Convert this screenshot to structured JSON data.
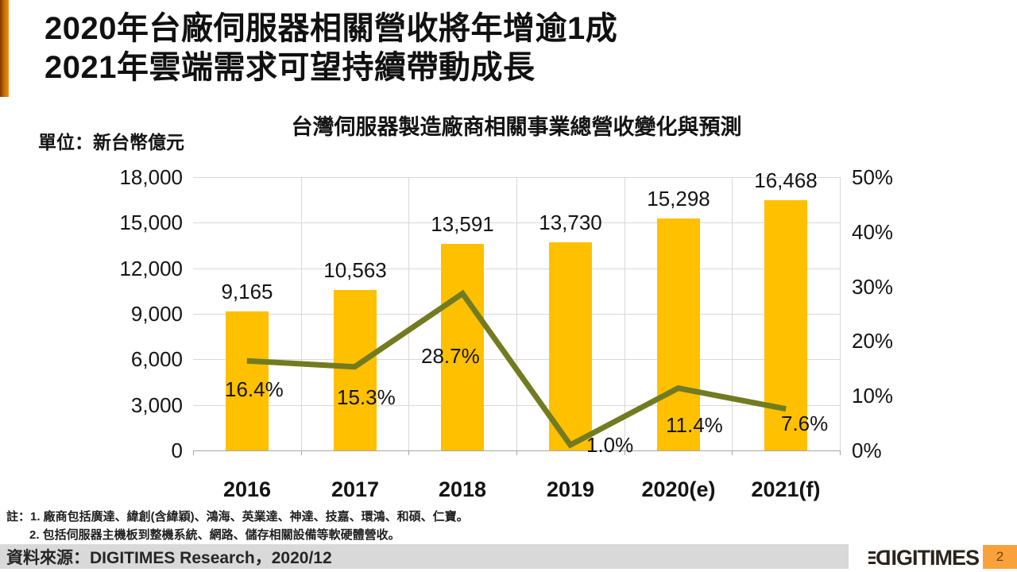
{
  "title": {
    "line1": "2020年台廠伺服器相關營收將年增逾1成",
    "line2": "2021年雲端需求可望持續帶動成長"
  },
  "unit_label": "單位：新台幣億元",
  "chart_data": {
    "type": "bar+line combo",
    "title": "台灣伺服器製造廠商相關事業總營收變化與預測",
    "categories": [
      "2016",
      "2017",
      "2018",
      "2019",
      "2020(e)",
      "2021(f)"
    ],
    "series": [
      {
        "name": "server-revenue",
        "type": "bar",
        "axis": "left",
        "values": [
          9165,
          10563,
          13591,
          13730,
          15298,
          16468
        ],
        "labels": [
          "9,165",
          "10,563",
          "13,591",
          "13,730",
          "15,298",
          "16,468"
        ],
        "color": "#FFC000"
      },
      {
        "name": "yoy-growth-rate",
        "type": "line",
        "axis": "right",
        "values": [
          16.4,
          15.3,
          28.7,
          1.0,
          11.4,
          7.6
        ],
        "labels": [
          "16.4%",
          "15.3%",
          "28.7%",
          "1.0%",
          "11.4%",
          "7.6%"
        ],
        "color": "#727B20"
      }
    ],
    "left_axis": {
      "min": 0,
      "max": 18000,
      "ticks": [
        "18,000",
        "15,000",
        "12,000",
        "9,000",
        "6,000",
        "3,000",
        "0"
      ]
    },
    "right_axis": {
      "min": 0,
      "max": 50,
      "ticks": [
        "50%",
        "40%",
        "30%",
        "20%",
        "10%",
        "0%"
      ]
    },
    "grid": true,
    "legend": "none"
  },
  "notes": {
    "line1": "註：1. 廠商包括廣達、緯創(含緯穎)、鴻海、英業達、神達、技嘉、環鴻、和碩、仁寶。",
    "line2": "2. 包括伺服器主機板到整機系統、網路、儲存相關設備等軟硬體營收。"
  },
  "footer": {
    "source": "資料來源：DIGITIMES Research，2020/12",
    "logo": {
      "first": "D",
      "rest": "IGITIMES"
    },
    "page": "2"
  },
  "colors": {
    "bar": "#FFC000",
    "line": "#727B20",
    "accent_bar": "#EF9410",
    "gridline": "#D9D9D9",
    "axis": "#A6A6A6",
    "footer_bar": "#D9D9D9",
    "page_badge": "#F9A23C"
  }
}
